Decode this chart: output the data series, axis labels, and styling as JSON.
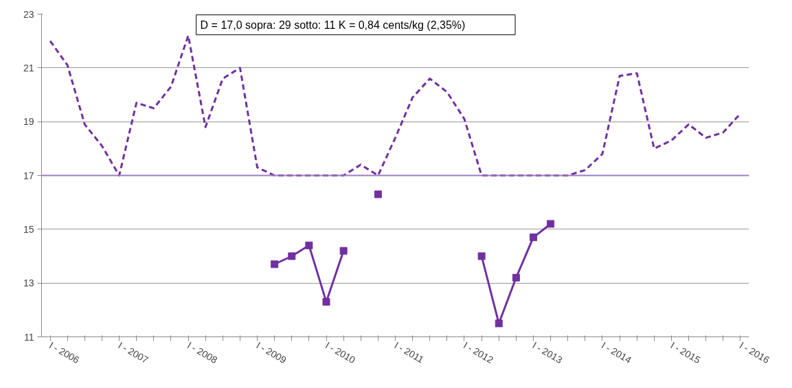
{
  "chart_data": {
    "type": "line",
    "categories": [
      "I - 2006",
      null,
      null,
      null,
      "I - 2007",
      null,
      null,
      null,
      "I - 2008",
      null,
      null,
      null,
      "I - 2009",
      null,
      null,
      null,
      "I - 2010",
      null,
      null,
      null,
      "I - 2011",
      null,
      null,
      null,
      "I - 2012",
      null,
      null,
      null,
      "I - 2013",
      null,
      null,
      null,
      "I - 2014",
      null,
      null,
      null,
      "I - 2015",
      null,
      null,
      null,
      "I - 2016"
    ],
    "series": [
      {
        "color": "#7030a0",
        "line_style": "dashed",
        "marker": "none",
        "values": [
          22.0,
          21.1,
          18.9,
          18.1,
          17.0,
          19.7,
          19.5,
          20.3,
          22.2,
          18.8,
          20.6,
          21.0,
          17.3,
          17.0,
          17.0,
          17.0,
          17.0,
          17.0,
          17.4,
          17.0,
          18.4,
          19.9,
          20.6,
          20.1,
          19.1,
          17.0,
          17.0,
          17.0,
          17.0,
          17.0,
          17.0,
          17.2,
          17.8,
          20.7,
          20.8,
          18.0,
          18.3,
          18.9,
          18.4,
          18.6,
          19.3
        ]
      },
      {
        "color": "#7030a0",
        "line_style": "solid",
        "marker": "square",
        "values": [
          null,
          null,
          null,
          null,
          null,
          null,
          null,
          null,
          null,
          null,
          null,
          null,
          null,
          13.7,
          14.0,
          14.4,
          12.3,
          14.2,
          null,
          16.3,
          null,
          null,
          null,
          null,
          null,
          14.0,
          11.5,
          13.2,
          14.7,
          15.2,
          null,
          null,
          null,
          null,
          null,
          null,
          null,
          null,
          null,
          null,
          null
        ]
      }
    ],
    "ylim": [
      11,
      23
    ],
    "yticks": [
      11,
      13,
      15,
      17,
      19,
      21,
      23
    ],
    "ref_lines": [
      {
        "axis": "y",
        "value": 17,
        "color": "#9e7cc1"
      }
    ],
    "annotations": [
      "D = 17,0      sopra: 29    sotto: 11       K = 0,84 cents/kg  (2,35%)"
    ],
    "grid": "y"
  }
}
